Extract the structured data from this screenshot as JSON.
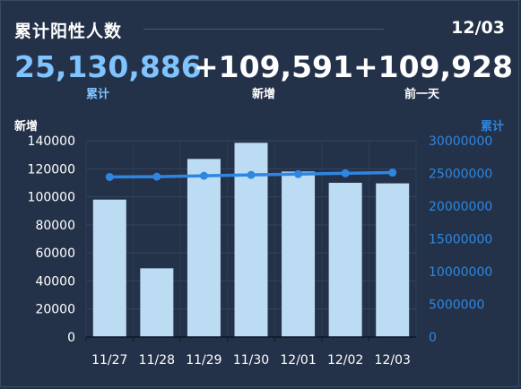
{
  "header": {
    "title": "累计阳性人数",
    "date": "12/03"
  },
  "stats": {
    "cumulative": {
      "value": "25,130,886",
      "label": "累计"
    },
    "new": {
      "value": "+109,591",
      "label": "新增"
    },
    "prev_day": {
      "value": "+109,928",
      "label": "前一天"
    }
  },
  "colors": {
    "background": "#243249",
    "cumulative_text": "#7fc4ff",
    "bar": "#bcdcf4",
    "line": "#2f86e0",
    "right_axis": "#2f86e0"
  },
  "chart_data": {
    "type": "bar",
    "categories": [
      "11/27",
      "11/28",
      "11/29",
      "11/30",
      "12/01",
      "12/02",
      "12/03"
    ],
    "series": [
      {
        "name": "新增",
        "type": "bar",
        "axis": "left",
        "values": [
          98000,
          49000,
          127000,
          138500,
          118000,
          110000,
          109591
        ]
      },
      {
        "name": "累计",
        "type": "line",
        "axis": "right",
        "values": [
          24460000,
          24510000,
          24640000,
          24770000,
          24900000,
          25020000,
          25130886
        ]
      }
    ],
    "left_axis": {
      "title": "新增",
      "ylim": [
        0,
        140000
      ],
      "ticks": [
        0,
        20000,
        40000,
        60000,
        80000,
        100000,
        120000,
        140000
      ]
    },
    "right_axis": {
      "title": "累计",
      "ylim": [
        0,
        30000000
      ],
      "ticks": [
        0,
        5000000,
        10000000,
        15000000,
        20000000,
        25000000,
        30000000
      ]
    },
    "grid": true
  }
}
